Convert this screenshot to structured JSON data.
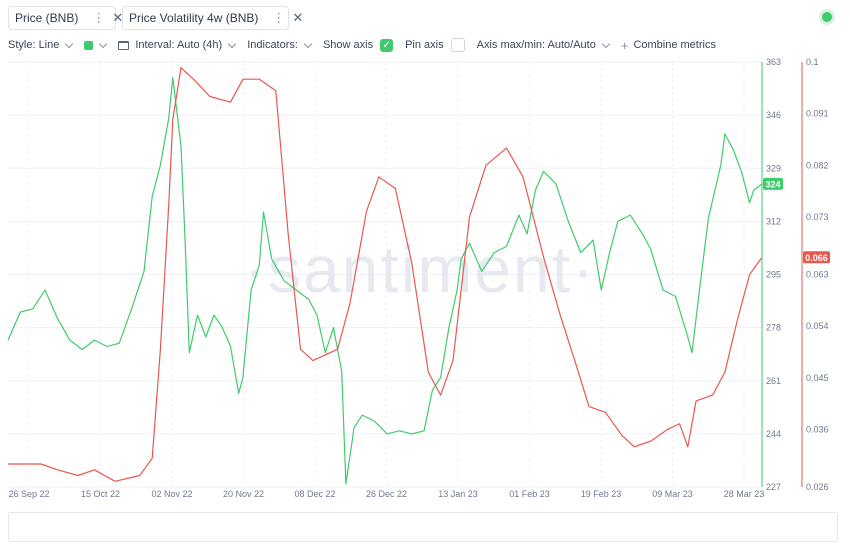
{
  "metrics": [
    {
      "label": "Price (BNB)",
      "color": "#3fcb6b"
    },
    {
      "label": "Price Volatility 4w (BNB)",
      "color": "#e8584f"
    }
  ],
  "toolbar": {
    "style_label": "Style: Line",
    "interval_label": "Interval: Auto (4h)",
    "indicators_label": "Indicators:",
    "show_axis_label": "Show axis",
    "pin_axis_label": "Pin axis",
    "axis_maxmin_label": "Axis max/min: Auto/Auto",
    "combine_label": "Combine metrics"
  },
  "watermark": "·santiment·",
  "chart_data": {
    "type": "line",
    "x_ticks": [
      "26 Sep 22",
      "15 Oct 22",
      "02 Nov 22",
      "20 Nov 22",
      "08 Dec 22",
      "26 Dec 22",
      "13 Jan 23",
      "01 Feb 23",
      "19 Feb 23",
      "09 Mar 23",
      "28 Mar 23"
    ],
    "x_range": [
      "2022-09-26",
      "2023-03-28"
    ],
    "axes": {
      "price": {
        "ticks": [
          363,
          346,
          329,
          312,
          295,
          278,
          261,
          244,
          227
        ],
        "range": [
          227,
          363
        ],
        "color": "#3fcb6b"
      },
      "volatility": {
        "ticks": [
          "0.1",
          "0.091",
          "0.082",
          "0.073",
          "0.063",
          "0.054",
          "0.045",
          "0.036",
          "0.026"
        ],
        "range": [
          0.026,
          0.1
        ],
        "color": "#e8584f"
      }
    },
    "current_labels": {
      "price": "324",
      "volatility": "0.066"
    },
    "grid": true,
    "series": [
      {
        "name": "Price (BNB)",
        "axis": "price",
        "color": "#3fcb6b",
        "points": [
          [
            "2022-09-26",
            274
          ],
          [
            "2022-09-29",
            283
          ],
          [
            "2022-10-02",
            284
          ],
          [
            "2022-10-05",
            290
          ],
          [
            "2022-10-08",
            281
          ],
          [
            "2022-10-11",
            274
          ],
          [
            "2022-10-14",
            271
          ],
          [
            "2022-10-17",
            274
          ],
          [
            "2022-10-20",
            272
          ],
          [
            "2022-10-23",
            273
          ],
          [
            "2022-10-26",
            284
          ],
          [
            "2022-10-29",
            296
          ],
          [
            "2022-10-31",
            320
          ],
          [
            "2022-11-02",
            330
          ],
          [
            "2022-11-04",
            345
          ],
          [
            "2022-11-05",
            358
          ],
          [
            "2022-11-07",
            336
          ],
          [
            "2022-11-08",
            305
          ],
          [
            "2022-11-09",
            270
          ],
          [
            "2022-11-11",
            282
          ],
          [
            "2022-11-13",
            275
          ],
          [
            "2022-11-15",
            282
          ],
          [
            "2022-11-17",
            278
          ],
          [
            "2022-11-19",
            272
          ],
          [
            "2022-11-21",
            257
          ],
          [
            "2022-11-22",
            262
          ],
          [
            "2022-11-24",
            290
          ],
          [
            "2022-11-26",
            298
          ],
          [
            "2022-11-27",
            315
          ],
          [
            "2022-11-29",
            300
          ],
          [
            "2022-12-02",
            293
          ],
          [
            "2022-12-05",
            290
          ],
          [
            "2022-12-08",
            287
          ],
          [
            "2022-12-10",
            282
          ],
          [
            "2022-12-12",
            270
          ],
          [
            "2022-12-14",
            278
          ],
          [
            "2022-12-16",
            264
          ],
          [
            "2022-12-17",
            228
          ],
          [
            "2022-12-19",
            246
          ],
          [
            "2022-12-21",
            250
          ],
          [
            "2022-12-24",
            248
          ],
          [
            "2022-12-27",
            244
          ],
          [
            "2022-12-30",
            245
          ],
          [
            "2023-01-02",
            244
          ],
          [
            "2023-01-05",
            245
          ],
          [
            "2023-01-07",
            258
          ],
          [
            "2023-01-09",
            262
          ],
          [
            "2023-01-11",
            278
          ],
          [
            "2023-01-13",
            290
          ],
          [
            "2023-01-14",
            300
          ],
          [
            "2023-01-16",
            305
          ],
          [
            "2023-01-19",
            296
          ],
          [
            "2023-01-22",
            302
          ],
          [
            "2023-01-25",
            304
          ],
          [
            "2023-01-28",
            314
          ],
          [
            "2023-01-30",
            308
          ],
          [
            "2023-02-01",
            322
          ],
          [
            "2023-02-03",
            328
          ],
          [
            "2023-02-06",
            324
          ],
          [
            "2023-02-09",
            312
          ],
          [
            "2023-02-12",
            302
          ],
          [
            "2023-02-15",
            306
          ],
          [
            "2023-02-17",
            290
          ],
          [
            "2023-02-19",
            302
          ],
          [
            "2023-02-21",
            312
          ],
          [
            "2023-02-24",
            314
          ],
          [
            "2023-02-27",
            308
          ],
          [
            "2023-03-01",
            303
          ],
          [
            "2023-03-04",
            290
          ],
          [
            "2023-03-07",
            288
          ],
          [
            "2023-03-10",
            275
          ],
          [
            "2023-03-11",
            270
          ],
          [
            "2023-03-13",
            292
          ],
          [
            "2023-03-15",
            313
          ],
          [
            "2023-03-18",
            330
          ],
          [
            "2023-03-19",
            340
          ],
          [
            "2023-03-21",
            335
          ],
          [
            "2023-03-23",
            328
          ],
          [
            "2023-03-25",
            318
          ],
          [
            "2023-03-26",
            322
          ],
          [
            "2023-03-28",
            324
          ]
        ]
      },
      {
        "name": "Price Volatility 4w (BNB)",
        "axis": "volatility",
        "color": "#e8584f",
        "points": [
          [
            "2022-09-26",
            0.03
          ],
          [
            "2022-10-04",
            0.03
          ],
          [
            "2022-10-08",
            0.029
          ],
          [
            "2022-10-13",
            0.028
          ],
          [
            "2022-10-17",
            0.029
          ],
          [
            "2022-10-22",
            0.027
          ],
          [
            "2022-10-28",
            0.028
          ],
          [
            "2022-10-31",
            0.031
          ],
          [
            "2022-11-02",
            0.05
          ],
          [
            "2022-11-04",
            0.075
          ],
          [
            "2022-11-05",
            0.09
          ],
          [
            "2022-11-07",
            0.099
          ],
          [
            "2022-11-10",
            0.097
          ],
          [
            "2022-11-14",
            0.094
          ],
          [
            "2022-11-19",
            0.093
          ],
          [
            "2022-11-22",
            0.097
          ],
          [
            "2022-11-26",
            0.097
          ],
          [
            "2022-11-30",
            0.095
          ],
          [
            "2022-12-03",
            0.07
          ],
          [
            "2022-12-06",
            0.05
          ],
          [
            "2022-12-09",
            0.048
          ],
          [
            "2022-12-12",
            0.049
          ],
          [
            "2022-12-15",
            0.05
          ],
          [
            "2022-12-18",
            0.058
          ],
          [
            "2022-12-22",
            0.074
          ],
          [
            "2022-12-25",
            0.08
          ],
          [
            "2022-12-29",
            0.078
          ],
          [
            "2023-01-02",
            0.065
          ],
          [
            "2023-01-06",
            0.046
          ],
          [
            "2023-01-09",
            0.042
          ],
          [
            "2023-01-12",
            0.048
          ],
          [
            "2023-01-16",
            0.073
          ],
          [
            "2023-01-20",
            0.082
          ],
          [
            "2023-01-25",
            0.085
          ],
          [
            "2023-01-29",
            0.08
          ],
          [
            "2023-02-03",
            0.066
          ],
          [
            "2023-02-07",
            0.056
          ],
          [
            "2023-02-11",
            0.047
          ],
          [
            "2023-02-14",
            0.04
          ],
          [
            "2023-02-18",
            0.039
          ],
          [
            "2023-02-22",
            0.035
          ],
          [
            "2023-02-25",
            0.033
          ],
          [
            "2023-03-01",
            0.034
          ],
          [
            "2023-03-05",
            0.036
          ],
          [
            "2023-03-08",
            0.037
          ],
          [
            "2023-03-10",
            0.033
          ],
          [
            "2023-03-12",
            0.041
          ],
          [
            "2023-03-16",
            0.042
          ],
          [
            "2023-03-19",
            0.046
          ],
          [
            "2023-03-22",
            0.055
          ],
          [
            "2023-03-25",
            0.063
          ],
          [
            "2023-03-28",
            0.066
          ]
        ]
      }
    ]
  }
}
